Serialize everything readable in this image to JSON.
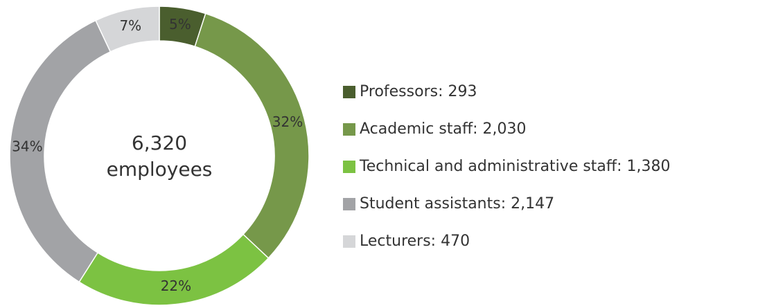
{
  "chart_data": {
    "type": "donut",
    "categories": [
      "Professors: 293",
      "Academic staff: 2,030",
      "Technical and administrative staff: 1,380",
      "Student assistants: 2,147",
      "Lecturers: 470"
    ],
    "values": [
      5,
      32,
      22,
      34,
      7
    ],
    "value_labels": [
      "5%",
      "32%",
      "22%",
      "34%",
      "7%"
    ],
    "colors": [
      "#4a5e2e",
      "#76984a",
      "#7cc242",
      "#a2a3a6",
      "#d5d6d8"
    ],
    "center": {
      "total": "6,320",
      "label": "employees"
    }
  }
}
